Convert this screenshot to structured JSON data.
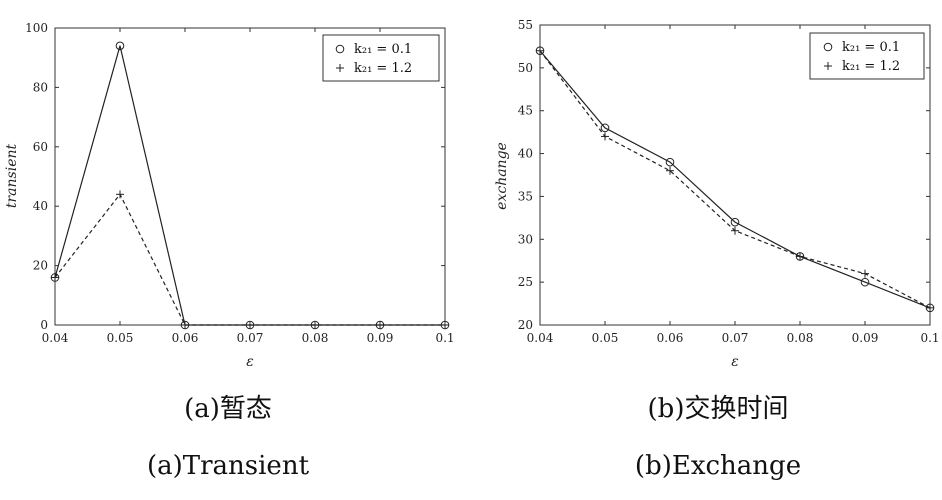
{
  "chart_data": [
    {
      "id": "a",
      "type": "line",
      "title": "",
      "xlabel": "ε",
      "ylabel": "transient",
      "x": [
        0.04,
        0.05,
        0.06,
        0.07,
        0.08,
        0.09,
        0.1
      ],
      "xticks": [
        "0.04",
        "0.05",
        "0.06",
        "0.07",
        "0.08",
        "0.09",
        "0.1"
      ],
      "yticks": [
        0,
        20,
        40,
        60,
        80,
        100
      ],
      "xlim": [
        0.04,
        0.1
      ],
      "ylim": [
        0,
        100
      ],
      "grid": false,
      "legend_position": "top-right",
      "series": [
        {
          "name": "k₂₁ = 0.1",
          "marker": "circle",
          "line": "solid",
          "values": [
            16,
            94,
            0,
            0,
            0,
            0,
            0
          ]
        },
        {
          "name": "k₂₁ = 1.2",
          "marker": "plus",
          "line": "dashed",
          "values": [
            16,
            44,
            0,
            0,
            0,
            0,
            0
          ]
        }
      ],
      "caption_cn": "(a)暂态",
      "caption_en": "(a)Transient"
    },
    {
      "id": "b",
      "type": "line",
      "title": "",
      "xlabel": "ε",
      "ylabel": "exchange",
      "x": [
        0.04,
        0.05,
        0.06,
        0.07,
        0.08,
        0.09,
        0.1
      ],
      "xticks": [
        "0.04",
        "0.05",
        "0.06",
        "0.07",
        "0.08",
        "0.09",
        "0.1"
      ],
      "yticks": [
        20,
        25,
        30,
        35,
        40,
        45,
        50,
        55
      ],
      "xlim": [
        0.04,
        0.1
      ],
      "ylim": [
        20,
        55
      ],
      "grid": false,
      "legend_position": "top-right",
      "series": [
        {
          "name": "k₂₁ = 0.1",
          "marker": "circle",
          "line": "solid",
          "values": [
            52,
            43,
            39,
            32,
            28,
            25,
            22
          ]
        },
        {
          "name": "k₂₁ = 1.2",
          "marker": "plus",
          "line": "dashed",
          "values": [
            52,
            42,
            38,
            31,
            28,
            26,
            22
          ]
        }
      ],
      "caption_cn": "(b)交换时间",
      "caption_en": "(b)Exchange"
    }
  ]
}
